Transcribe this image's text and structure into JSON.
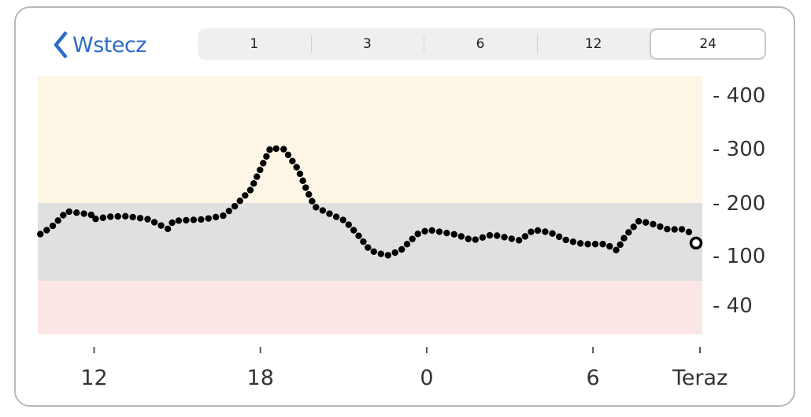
{
  "header": {
    "back_label": "Wstecz",
    "range_options": [
      "1",
      "3",
      "6",
      "12",
      "24"
    ],
    "selected_range": "24"
  },
  "chart_data": {
    "type": "scatter",
    "title": "",
    "xlabel": "",
    "ylabel": "",
    "x_unit": "hours relative to now",
    "xlim": [
      -23.8,
      0
    ],
    "y_ticks": [
      400,
      300,
      200,
      100,
      40
    ],
    "y_tick_labels": [
      "- 400",
      "- 300",
      "- 200",
      "- 100",
      "- 40"
    ],
    "x_ticks": [
      {
        "t": -21.86,
        "label": "12"
      },
      {
        "t": -15.86,
        "label": "18"
      },
      {
        "t": -9.86,
        "label": "0"
      },
      {
        "t": -3.86,
        "label": "6"
      },
      {
        "t": 0,
        "label": "Teraz"
      }
    ],
    "bands": [
      {
        "name": "high",
        "from": 200,
        "to": 435,
        "color": "#fdf6e6"
      },
      {
        "name": "target",
        "from": 70,
        "to": 200,
        "color": "#e0e0e0"
      },
      {
        "name": "low",
        "from": 5,
        "to": 70,
        "color": "#fce6e6"
      }
    ],
    "readings": [
      {
        "t": -23.8,
        "v": 141
      },
      {
        "t": -23.4,
        "v": 154
      },
      {
        "t": -22.84,
        "v": 184
      },
      {
        "t": -22.4,
        "v": 181
      },
      {
        "t": -21.97,
        "v": 178
      },
      {
        "t": -21.9,
        "v": 169
      },
      {
        "t": -21.3,
        "v": 174
      },
      {
        "t": -20.7,
        "v": 175
      },
      {
        "t": -19.9,
        "v": 169
      },
      {
        "t": -19.2,
        "v": 151
      },
      {
        "t": -19.0,
        "v": 166
      },
      {
        "t": -17.9,
        "v": 169
      },
      {
        "t": -17.2,
        "v": 176
      },
      {
        "t": -16.8,
        "v": 193
      },
      {
        "t": -16.2,
        "v": 225
      },
      {
        "t": -15.8,
        "v": 269
      },
      {
        "t": -15.5,
        "v": 301
      },
      {
        "t": -15.0,
        "v": 299
      },
      {
        "t": -14.5,
        "v": 262
      },
      {
        "t": -14.2,
        "v": 225
      },
      {
        "t": -13.9,
        "v": 193
      },
      {
        "t": -13.3,
        "v": 178
      },
      {
        "t": -12.8,
        "v": 166
      },
      {
        "t": -12.3,
        "v": 137
      },
      {
        "t": -11.9,
        "v": 110
      },
      {
        "t": -11.3,
        "v": 100
      },
      {
        "t": -10.8,
        "v": 110
      },
      {
        "t": -10.2,
        "v": 141
      },
      {
        "t": -9.8,
        "v": 149
      },
      {
        "t": -8.8,
        "v": 140
      },
      {
        "t": -8.2,
        "v": 129
      },
      {
        "t": -7.5,
        "v": 140
      },
      {
        "t": -6.5,
        "v": 129
      },
      {
        "t": -6.0,
        "v": 149
      },
      {
        "t": -5.4,
        "v": 144
      },
      {
        "t": -4.8,
        "v": 129
      },
      {
        "t": -4.2,
        "v": 122
      },
      {
        "t": -3.4,
        "v": 122
      },
      {
        "t": -3.0,
        "v": 110
      },
      {
        "t": -2.7,
        "v": 137
      },
      {
        "t": -2.2,
        "v": 166
      },
      {
        "t": -1.7,
        "v": 160
      },
      {
        "t": -1.1,
        "v": 149
      },
      {
        "t": -0.7,
        "v": 151
      },
      {
        "t": -0.3,
        "v": 143
      }
    ],
    "current": {
      "t": 0,
      "v": 124
    }
  },
  "colors": {
    "accent": "#2f6cc4",
    "dot": "#000000"
  }
}
